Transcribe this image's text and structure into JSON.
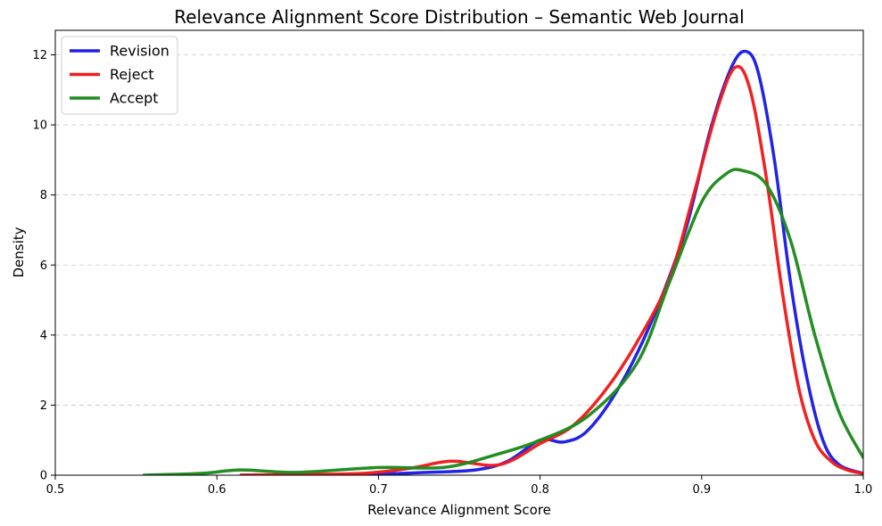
{
  "chart_data": {
    "type": "line",
    "title": "Relevance Alignment Score Distribution – Semantic Web Journal",
    "xlabel": "Relevance Alignment Score",
    "ylabel": "Density",
    "xlim": [
      0.5,
      1.0
    ],
    "ylim": [
      0,
      12.7
    ],
    "xticks": [
      0.5,
      0.6,
      0.7,
      0.8,
      0.9,
      1.0
    ],
    "xtick_labels": [
      "0.5",
      "0.6",
      "0.7",
      "0.8",
      "0.9",
      "1.0"
    ],
    "yticks": [
      0,
      2,
      4,
      6,
      8,
      10,
      12
    ],
    "ytick_labels": [
      "0",
      "2",
      "4",
      "6",
      "8",
      "10",
      "12"
    ],
    "grid": "y-dashed",
    "legend_position": "top-left",
    "series": [
      {
        "name": "Revision",
        "color": "#1f1fe6",
        "x": [
          0.615,
          0.64,
          0.67,
          0.7,
          0.73,
          0.76,
          0.78,
          0.8,
          0.815,
          0.83,
          0.85,
          0.87,
          0.89,
          0.905,
          0.918,
          0.927,
          0.935,
          0.945,
          0.955,
          0.965,
          0.975,
          0.985,
          1.0
        ],
        "y": [
          0.0,
          0.01,
          0.02,
          0.03,
          0.08,
          0.15,
          0.4,
          1.0,
          0.95,
          1.3,
          2.6,
          4.5,
          7.0,
          9.8,
          11.6,
          12.1,
          11.5,
          9.0,
          5.5,
          2.8,
          1.0,
          0.3,
          0.05
        ]
      },
      {
        "name": "Reject",
        "color": "#f21d1d",
        "x": [
          0.615,
          0.65,
          0.69,
          0.72,
          0.745,
          0.775,
          0.8,
          0.82,
          0.84,
          0.86,
          0.88,
          0.895,
          0.91,
          0.921,
          0.93,
          0.94,
          0.95,
          0.96,
          0.97,
          0.98,
          0.99,
          1.0
        ],
        "y": [
          0.0,
          0.02,
          0.05,
          0.2,
          0.4,
          0.3,
          0.9,
          1.4,
          2.4,
          3.8,
          5.6,
          8.0,
          10.5,
          11.65,
          11.0,
          8.5,
          5.2,
          2.5,
          1.0,
          0.4,
          0.15,
          0.05
        ]
      },
      {
        "name": "Accept",
        "color": "#1f8c1f",
        "x": [
          0.555,
          0.59,
          0.615,
          0.65,
          0.7,
          0.74,
          0.77,
          0.8,
          0.83,
          0.86,
          0.88,
          0.9,
          0.915,
          0.925,
          0.94,
          0.955,
          0.97,
          0.985,
          1.0
        ],
        "y": [
          0.0,
          0.05,
          0.15,
          0.08,
          0.22,
          0.22,
          0.55,
          1.0,
          1.7,
          3.2,
          5.5,
          7.8,
          8.6,
          8.7,
          8.3,
          6.7,
          4.0,
          1.8,
          0.5
        ]
      }
    ]
  }
}
